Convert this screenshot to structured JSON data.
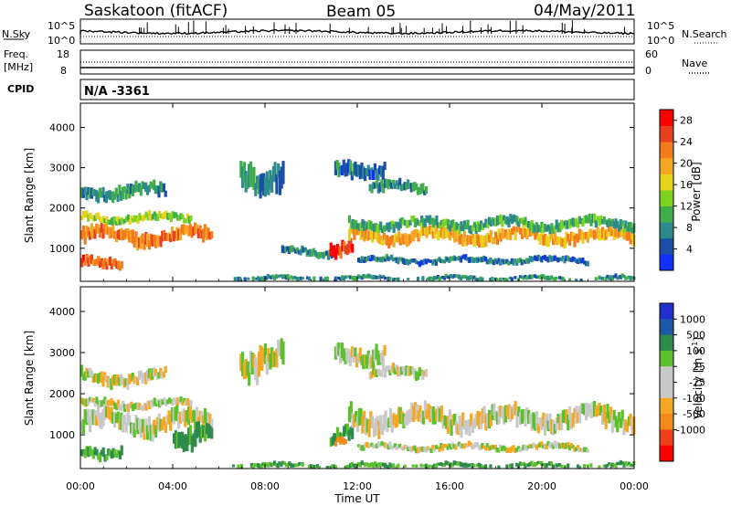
{
  "header": {
    "station": "Saskatoon (fitACF)",
    "beam": "Beam 05",
    "date": "04/May/2011"
  },
  "noise_panel": {
    "left_label": "N.Sky",
    "left_ticks": [
      "10^5",
      "10^0"
    ],
    "right_ticks": [
      "10^5",
      "10^0"
    ],
    "right_label": "N.Search"
  },
  "freq_panel": {
    "left_label_line1": "Freq.",
    "left_label_line2": "[MHz]",
    "left_ticks": [
      "18",
      "8"
    ],
    "right_ticks": [
      "60",
      "0"
    ],
    "right_label": "Nave"
  },
  "cpid": {
    "label": "CPID",
    "value": "N/A -3361"
  },
  "chart_data": [
    {
      "type": "heatmap",
      "name": "power",
      "xlabel": "Time UT",
      "ylabel": "Slant Range [km]",
      "x_ticks": [
        "00:00",
        "04:00",
        "08:00",
        "12:00",
        "16:00",
        "20:00",
        "00:00"
      ],
      "xlim_hours": [
        0,
        24
      ],
      "y_ticks": [
        1000,
        2000,
        3000,
        4000
      ],
      "ylim_km": [
        180,
        4600
      ],
      "colorbar": {
        "label": "Power [dB]",
        "ticks": [
          4,
          8,
          12,
          16,
          20,
          24,
          28
        ],
        "range": [
          0,
          30
        ],
        "colors": [
          "#1030ff",
          "#1a4fa8",
          "#2c8a8a",
          "#3fae4a",
          "#7ed321",
          "#e6d21a",
          "#f5a623",
          "#f57a1a",
          "#e8401c",
          "#ff0000"
        ]
      },
      "bands": [
        {
          "start_h": 0.0,
          "end_h": 5.7,
          "range_km": 1300,
          "width_km": 350,
          "power_db": 22
        },
        {
          "start_h": 0.0,
          "end_h": 1.8,
          "range_km": 600,
          "width_km": 250,
          "power_db": 24
        },
        {
          "start_h": 0.0,
          "end_h": 4.8,
          "range_km": 1750,
          "width_km": 200,
          "power_db": 14
        },
        {
          "start_h": 0.0,
          "end_h": 3.7,
          "range_km": 2400,
          "width_km": 300,
          "power_db": 8
        },
        {
          "start_h": 6.9,
          "end_h": 8.8,
          "range_km": 2850,
          "width_km": 650,
          "power_db": 8
        },
        {
          "start_h": 8.7,
          "end_h": 10.9,
          "range_km": 900,
          "width_km": 200,
          "power_db": 8
        },
        {
          "start_h": 10.8,
          "end_h": 11.8,
          "range_km": 1000,
          "width_km": 350,
          "power_db": 27
        },
        {
          "start_h": 11.6,
          "end_h": 24.0,
          "range_km": 1300,
          "width_km": 300,
          "power_db": 20
        },
        {
          "start_h": 11.6,
          "end_h": 24.0,
          "range_km": 1600,
          "width_km": 250,
          "power_db": 10
        },
        {
          "start_h": 11.0,
          "end_h": 13.2,
          "range_km": 3000,
          "width_km": 400,
          "power_db": 6
        },
        {
          "start_h": 12.5,
          "end_h": 15.0,
          "range_km": 2500,
          "width_km": 250,
          "power_db": 8
        },
        {
          "start_h": 12.0,
          "end_h": 22.0,
          "range_km": 700,
          "width_km": 150,
          "power_db": 6
        },
        {
          "start_h": 6.5,
          "end_h": 24.0,
          "range_km": 250,
          "width_km": 120,
          "power_db": 8
        }
      ]
    },
    {
      "type": "heatmap",
      "name": "velocity",
      "xlabel": "Time UT",
      "ylabel": "Slant Range [km]",
      "x_ticks": [
        "00:00",
        "04:00",
        "08:00",
        "12:00",
        "16:00",
        "20:00",
        "00:00"
      ],
      "xlim_hours": [
        0,
        24
      ],
      "y_ticks": [
        1000,
        2000,
        3000,
        4000
      ],
      "ylim_km": [
        180,
        4600
      ],
      "colorbar": {
        "label": "Velocity [m s^-1]",
        "ticks": [
          "1000",
          "500",
          "100",
          "25",
          "-25",
          "-100",
          "-500",
          "-1000"
        ],
        "colors": [
          "#2030d0",
          "#1a5aa8",
          "#2c8a4a",
          "#5cc02c",
          "#c8c8c8",
          "#c8c8c8",
          "#f5a623",
          "#f58a1a",
          "#f04018",
          "#ff0000"
        ]
      },
      "bands": [
        {
          "start_h": 0.0,
          "end_h": 5.7,
          "range_km": 1300,
          "width_km": 450,
          "velocity": 0
        },
        {
          "start_h": 0.0,
          "end_h": 4.8,
          "range_km": 1750,
          "width_km": 200,
          "velocity": 0
        },
        {
          "start_h": 0.0,
          "end_h": 3.7,
          "range_km": 2400,
          "width_km": 300,
          "velocity": 0
        },
        {
          "start_h": 0.0,
          "end_h": 1.8,
          "range_km": 600,
          "width_km": 250,
          "velocity": 100
        },
        {
          "start_h": 4.0,
          "end_h": 5.7,
          "range_km": 1000,
          "width_km": 500,
          "velocity": 150
        },
        {
          "start_h": 6.9,
          "end_h": 8.8,
          "range_km": 2850,
          "width_km": 650,
          "velocity": 0
        },
        {
          "start_h": 10.8,
          "end_h": 11.8,
          "range_km": 1000,
          "width_km": 350,
          "velocity": 120
        },
        {
          "start_h": 11.0,
          "end_h": 11.5,
          "range_km": 800,
          "width_km": 200,
          "velocity": -200
        },
        {
          "start_h": 11.6,
          "end_h": 24.0,
          "range_km": 1400,
          "width_km": 450,
          "velocity": 0
        },
        {
          "start_h": 11.0,
          "end_h": 13.2,
          "range_km": 3000,
          "width_km": 400,
          "velocity": 0
        },
        {
          "start_h": 12.5,
          "end_h": 15.0,
          "range_km": 2500,
          "width_km": 250,
          "velocity": 0
        },
        {
          "start_h": 12.0,
          "end_h": 22.0,
          "range_km": 700,
          "width_km": 150,
          "velocity": 0
        },
        {
          "start_h": 6.5,
          "end_h": 24.0,
          "range_km": 250,
          "width_km": 120,
          "velocity": 100
        }
      ]
    }
  ]
}
